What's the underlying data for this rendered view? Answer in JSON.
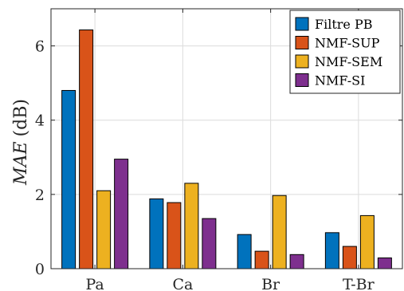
{
  "chart_data": {
    "type": "bar",
    "categories": [
      "Pa",
      "Ca",
      "Br",
      "T-Br"
    ],
    "series": [
      {
        "name": "Filtre PB",
        "color": "#0072BD",
        "values": [
          4.8,
          1.88,
          0.92,
          0.97
        ]
      },
      {
        "name": "NMF-SUP",
        "color": "#D95319",
        "values": [
          6.43,
          1.78,
          0.47,
          0.6
        ]
      },
      {
        "name": "NMF-SEM",
        "color": "#EDB120",
        "values": [
          2.1,
          2.3,
          1.97,
          1.43
        ]
      },
      {
        "name": "NMF-SI",
        "color": "#7E2F8E",
        "values": [
          2.95,
          1.35,
          0.38,
          0.29
        ]
      }
    ],
    "ylabel": {
      "var": "MAE",
      "unit": "(dB)"
    },
    "ylim": [
      0,
      7
    ],
    "yticks": [
      0,
      2,
      4,
      6
    ],
    "grid": true,
    "legend": "top-right"
  }
}
